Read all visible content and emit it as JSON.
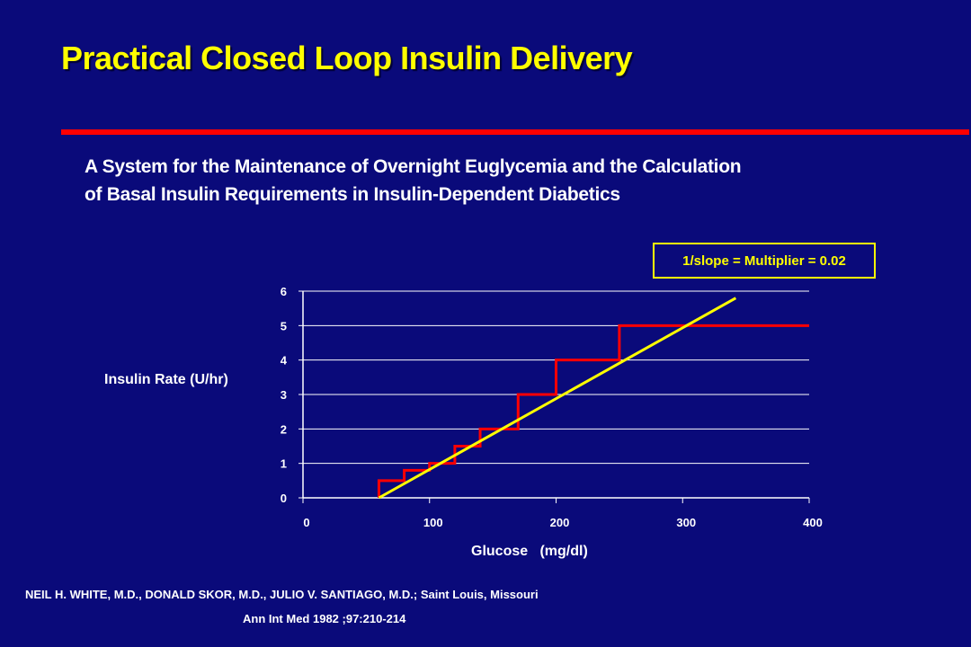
{
  "slide": {
    "title": "Practical Closed Loop Insulin Delivery",
    "subtitle_line1": "A System for the Maintenance of Overnight Euglycemia and the Calculation",
    "subtitle_line2": "of Basal Insulin Requirements in Insulin-Dependent Diabetics",
    "multiplier_label": "1/slope = Multiplier =  0.02",
    "authors": "NEIL H. WHITE, M.D., DONALD SKOR, M.D., JULIO V. SANTIAGO, M.D.;   Saint Louis, Missouri",
    "citation": "Ann Int Med 1982 ;97:210-214"
  },
  "colors": {
    "background": "#0a0a7a",
    "title": "#ffff00",
    "rule": "#ff0000",
    "step_series": "#ff0000",
    "line_series": "#ffff00",
    "grid": "#ffffff"
  },
  "chart_data": {
    "type": "line",
    "xlabel": "Glucose   (mg/dl)",
    "ylabel": "Insulin Rate  (U/hr)",
    "xlim": [
      0,
      400
    ],
    "ylim": [
      0,
      6
    ],
    "xticks": [
      0,
      100,
      200,
      300,
      400
    ],
    "yticks": [
      0,
      1,
      2,
      3,
      4,
      5,
      6
    ],
    "grid": "horizontal",
    "series": [
      {
        "kind": "step",
        "color": "#ff0000",
        "x": [
          60,
          60,
          80,
          80,
          100,
          100,
          120,
          120,
          140,
          140,
          170,
          170,
          200,
          200,
          250,
          250,
          400
        ],
        "y": [
          0,
          0.5,
          0.5,
          0.8,
          0.8,
          1,
          1,
          1.5,
          1.5,
          2,
          2,
          3,
          3,
          4,
          4,
          5,
          5
        ]
      },
      {
        "kind": "line",
        "color": "#ffff00",
        "x": [
          60,
          342
        ],
        "y": [
          0,
          5.8
        ]
      }
    ]
  }
}
